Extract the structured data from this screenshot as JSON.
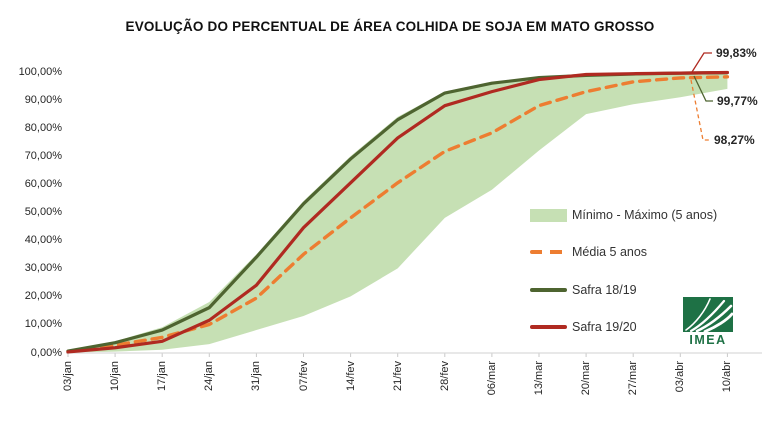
{
  "chart_data": {
    "type": "area",
    "title": "EVOLUÇÃO DO PERCENTUAL DE ÁREA COLHIDA DE SOJA EM MATO GROSSO",
    "x": [
      "03/jan",
      "10/jan",
      "17/jan",
      "24/jan",
      "31/jan",
      "07/fev",
      "14/fev",
      "21/fev",
      "28/fev",
      "06/mar",
      "13/mar",
      "20/mar",
      "27/mar",
      "03/abr",
      "10/abr"
    ],
    "ylim": [
      0,
      100
    ],
    "ytick_labels": [
      "100,00%",
      "90,00%",
      "80,00%",
      "70,00%",
      "60,00%",
      "50,00%",
      "40,00%",
      "30,00%",
      "20,00%",
      "10,00%",
      "0,00%"
    ],
    "grid": false,
    "legend_position": "middle-right",
    "series": [
      {
        "name": "Mínimo - Máximo (5 anos)",
        "type": "band",
        "color": "#c6e0b4",
        "min": [
          0,
          0.3,
          1,
          3,
          8,
          13,
          20,
          30,
          48,
          58,
          72,
          85,
          88.5,
          91,
          94
        ],
        "max": [
          0.7,
          4,
          9,
          18,
          35,
          54,
          70,
          84,
          93,
          96.5,
          98.3,
          99.2,
          99.6,
          99.8,
          99.9
        ]
      },
      {
        "name": "Média 5 anos",
        "type": "line",
        "style": "dashed",
        "color": "#ed7d31",
        "values": [
          0.4,
          2.6,
          5.4,
          10,
          19.4,
          35,
          48,
          60.5,
          71.7,
          78.3,
          88,
          93,
          96.5,
          97.9,
          98.27
        ]
      },
      {
        "name": "Safra 18/19",
        "type": "line",
        "style": "solid",
        "color": "#4e6430",
        "values": [
          0.5,
          3.5,
          8,
          16,
          34,
          53,
          69,
          83,
          92.5,
          96,
          98,
          98.8,
          99.3,
          99.6,
          99.77
        ]
      },
      {
        "name": "Safra 19/20",
        "type": "line",
        "style": "solid",
        "color": "#b02a21",
        "values": [
          0.2,
          1.7,
          4,
          11.5,
          24,
          44.5,
          60.5,
          76.5,
          88,
          93,
          97.3,
          99.1,
          99.4,
          99.6,
          99.83
        ]
      }
    ]
  },
  "annotations": [
    {
      "label": "99,83%",
      "series": "Safra 19/20",
      "color": "#b02a21",
      "dashed": false
    },
    {
      "label": "99,77%",
      "series": "Safra 18/19",
      "color": "#4e6430",
      "dashed": false
    },
    {
      "label": "98,27%",
      "series": "Média 5 anos",
      "color": "#ed7d31",
      "dashed": true
    }
  ],
  "logo": {
    "text": "IMEA",
    "color": "#1e7145"
  }
}
